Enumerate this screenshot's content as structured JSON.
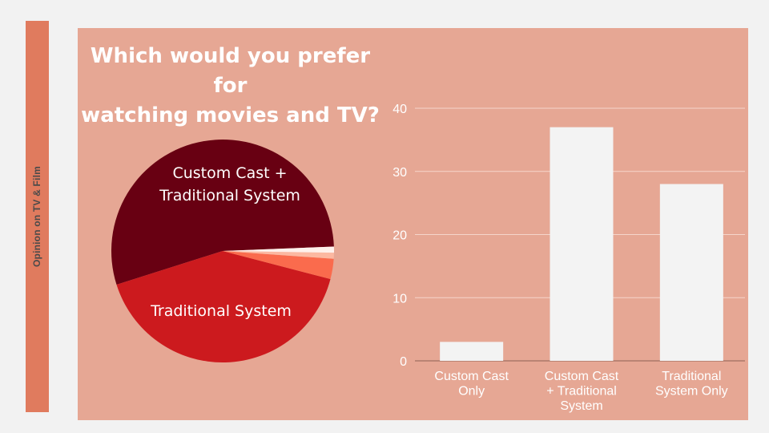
{
  "slide": {
    "side_label": "Opinion on TV & Film",
    "title_line1": "Which would you prefer for",
    "title_line2": "watching movies and TV?"
  },
  "colors": {
    "background": "#f2f2f2",
    "panel": "#e6a794",
    "side_bar": "#e07b5e",
    "bar_fill": "#f3f3f3",
    "gridline": "#f5d5cb",
    "tick_text": "#ffffff"
  },
  "chart_data": [
    {
      "type": "pie",
      "slices": [
        {
          "label": "Custom Cast + Traditional System",
          "value": 37,
          "color": "#680012",
          "show_label": true
        },
        {
          "label": "Traditional System",
          "value": 28,
          "color": "#cc1a1e",
          "show_label": true
        },
        {
          "label": "",
          "value": 2,
          "color": "#fa6b4d",
          "show_label": false
        },
        {
          "label": "",
          "value": 0.6,
          "color": "#fcb8a1",
          "show_label": false
        },
        {
          "label": "",
          "value": 0.6,
          "color": "#fff1ec",
          "show_label": false
        }
      ]
    },
    {
      "type": "bar",
      "categories": [
        [
          "Custom Cast",
          "Only"
        ],
        [
          "Custom Cast",
          "+ Traditional",
          "System"
        ],
        [
          "Traditional",
          "System Only"
        ]
      ],
      "values": [
        3,
        37,
        28
      ],
      "ylim": [
        0,
        40
      ],
      "yticks": [
        "0",
        "10",
        "20",
        "30",
        "40"
      ],
      "grid": true
    }
  ]
}
